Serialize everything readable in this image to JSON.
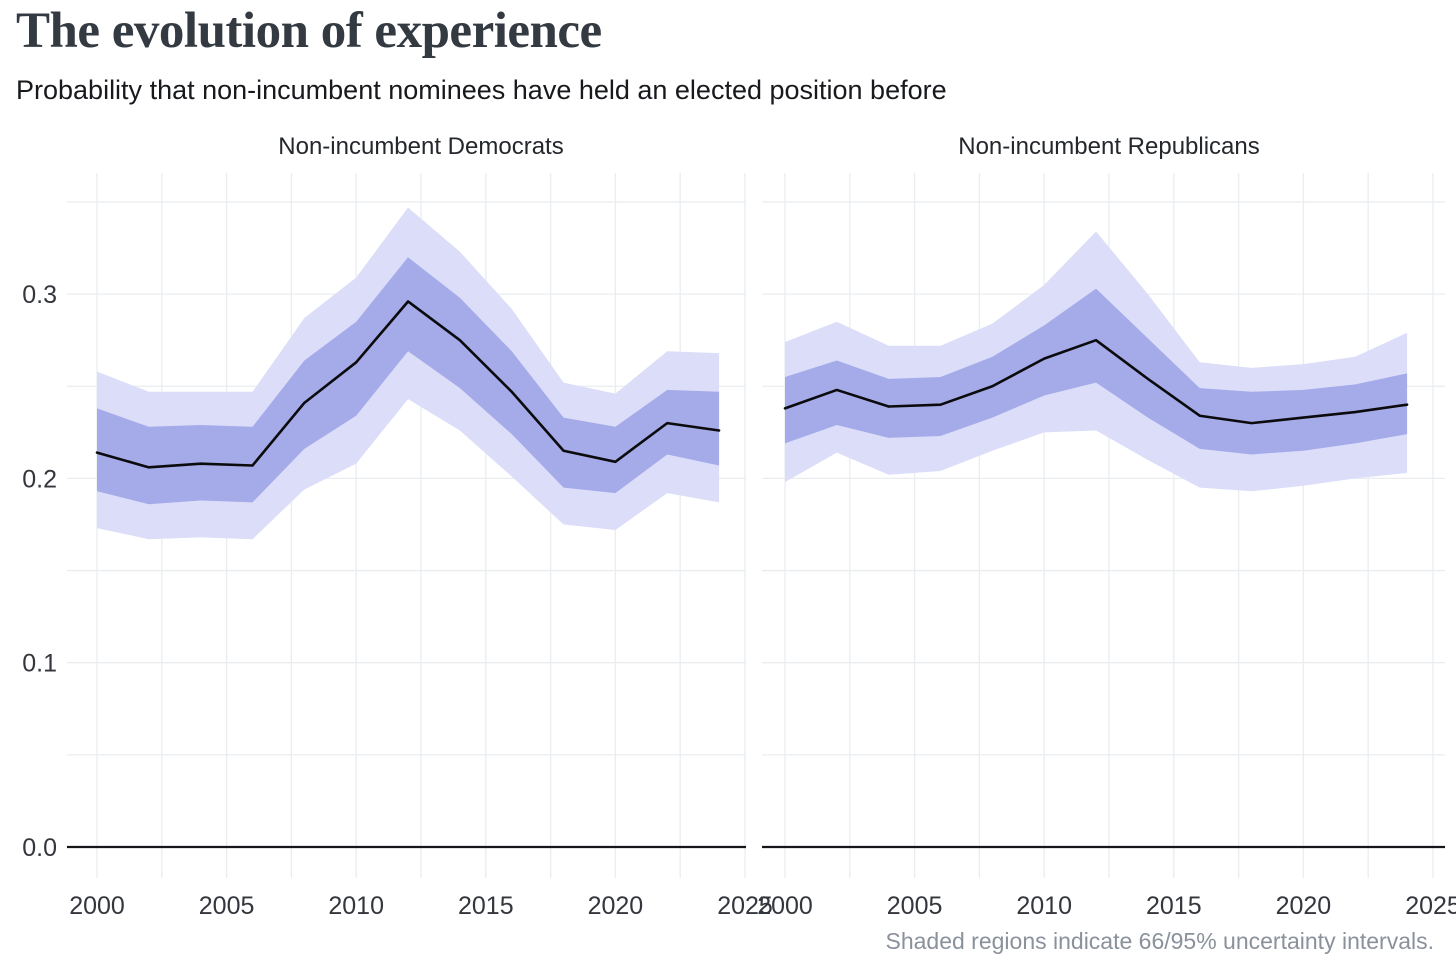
{
  "header": {
    "title": "The evolution of experience",
    "subtitle": "Probability that non-incumbent nominees have held an elected position before"
  },
  "footnote": "Shaded regions indicate 66/95% uncertainty intervals.",
  "colors": {
    "background": "#ffffff",
    "title": "#333a41",
    "subtitle": "#17191d",
    "panel_title": "#24272c",
    "tick_label": "#33373d",
    "grid": "#e9edf0",
    "axis": "#16161a",
    "line": "#0b0b0e",
    "band66": "#a5abe9",
    "band95": "#dcdef9",
    "footnote": "#8b919b"
  },
  "chart_data": {
    "type": "line",
    "description": "Faceted line chart with shaded 66% and 95% uncertainty bands",
    "title": "The evolution of experience",
    "subtitle": "Probability that non-incumbent nominees have held an elected position before",
    "legend": "none",
    "grid": true,
    "xlim": [
      1998.8,
      2025.4
    ],
    "ylim": [
      0,
      0.3655
    ],
    "x_ticks": [
      2000,
      2005,
      2010,
      2015,
      2020,
      2025
    ],
    "x_gridline_step_years": 2.5,
    "y_ticks": [
      0.0,
      0.1,
      0.2,
      0.3
    ],
    "y_tick_labels": [
      "0.0",
      "0.1",
      "0.2",
      "0.3"
    ],
    "y_minor_gridline_step": 0.05,
    "years": [
      2000,
      2002,
      2004,
      2006,
      2008,
      2010,
      2012,
      2014,
      2016,
      2018,
      2020,
      2022,
      2024
    ],
    "bands_note": "66/95% uncertainty intervals",
    "panels": [
      {
        "key": "democrats",
        "title": "Non-incumbent Democrats",
        "values": [
          0.214,
          0.206,
          0.208,
          0.207,
          0.241,
          0.263,
          0.296,
          0.275,
          0.247,
          0.215,
          0.209,
          0.23,
          0.226
        ],
        "hi66": [
          0.238,
          0.228,
          0.229,
          0.228,
          0.264,
          0.285,
          0.32,
          0.298,
          0.269,
          0.233,
          0.228,
          0.248,
          0.247
        ],
        "lo66": [
          0.193,
          0.186,
          0.188,
          0.187,
          0.216,
          0.234,
          0.269,
          0.249,
          0.224,
          0.195,
          0.192,
          0.213,
          0.207
        ],
        "hi95": [
          0.258,
          0.247,
          0.247,
          0.247,
          0.287,
          0.309,
          0.347,
          0.323,
          0.292,
          0.252,
          0.246,
          0.269,
          0.268
        ],
        "lo95": [
          0.173,
          0.167,
          0.168,
          0.167,
          0.194,
          0.208,
          0.243,
          0.226,
          0.201,
          0.175,
          0.172,
          0.192,
          0.187
        ]
      },
      {
        "key": "republicans",
        "title": "Non-incumbent Republicans",
        "values": [
          0.238,
          0.248,
          0.239,
          0.24,
          0.25,
          0.265,
          0.275,
          0.254,
          0.234,
          0.23,
          0.233,
          0.236,
          0.24
        ],
        "hi66": [
          0.255,
          0.264,
          0.254,
          0.255,
          0.266,
          0.283,
          0.303,
          0.276,
          0.249,
          0.247,
          0.248,
          0.251,
          0.257
        ],
        "lo66": [
          0.219,
          0.229,
          0.222,
          0.223,
          0.233,
          0.245,
          0.252,
          0.233,
          0.216,
          0.213,
          0.215,
          0.219,
          0.224
        ],
        "hi95": [
          0.274,
          0.285,
          0.272,
          0.272,
          0.284,
          0.305,
          0.334,
          0.3,
          0.263,
          0.26,
          0.262,
          0.266,
          0.279
        ],
        "lo95": [
          0.198,
          0.214,
          0.202,
          0.204,
          0.215,
          0.225,
          0.226,
          0.21,
          0.195,
          0.193,
          0.196,
          0.2,
          0.203
        ]
      }
    ]
  }
}
